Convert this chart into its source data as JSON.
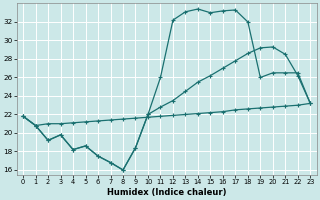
{
  "xlabel": "Humidex (Indice chaleur)",
  "bg_color": "#cce8e8",
  "grid_color": "#ffffff",
  "line_color": "#1a7070",
  "xlim": [
    -0.5,
    23.5
  ],
  "ylim": [
    15.5,
    34
  ],
  "yticks": [
    16,
    18,
    20,
    22,
    24,
    26,
    28,
    30,
    32
  ],
  "xticks": [
    0,
    1,
    2,
    3,
    4,
    5,
    6,
    7,
    8,
    9,
    10,
    11,
    12,
    13,
    14,
    15,
    16,
    17,
    18,
    19,
    20,
    21,
    22,
    23
  ],
  "line1_x": [
    0,
    1,
    2,
    3,
    4,
    5,
    6,
    7,
    8,
    9,
    10,
    11,
    12,
    13,
    14,
    15,
    16,
    17,
    18,
    19,
    20,
    21,
    22,
    23
  ],
  "line1_y": [
    21.8,
    20.8,
    19.2,
    19.8,
    18.2,
    18.6,
    17.5,
    16.8,
    16.0,
    18.4,
    22.0,
    26.0,
    32.2,
    33.1,
    33.4,
    33.0,
    33.2,
    33.3,
    32.0,
    26.0,
    26.5,
    26.5,
    26.5,
    23.2
  ],
  "line2_x": [
    0,
    1,
    2,
    3,
    4,
    5,
    6,
    7,
    8,
    9,
    10,
    11,
    12,
    13,
    14,
    15,
    16,
    17,
    18,
    19,
    20,
    21,
    22,
    23
  ],
  "line2_y": [
    21.8,
    20.8,
    19.2,
    19.8,
    18.2,
    18.6,
    17.5,
    16.8,
    16.0,
    18.4,
    22.0,
    22.8,
    23.5,
    24.5,
    25.5,
    26.2,
    27.0,
    27.8,
    28.6,
    29.2,
    29.3,
    28.5,
    26.2,
    23.2
  ],
  "line3_x": [
    0,
    1,
    2,
    3,
    4,
    5,
    6,
    7,
    8,
    9,
    10,
    11,
    12,
    13,
    14,
    15,
    16,
    17,
    18,
    19,
    20,
    21,
    22,
    23
  ],
  "line3_y": [
    21.8,
    20.8,
    21.0,
    21.0,
    21.1,
    21.2,
    21.3,
    21.4,
    21.5,
    21.6,
    21.7,
    21.8,
    21.9,
    22.0,
    22.1,
    22.2,
    22.3,
    22.5,
    22.6,
    22.7,
    22.8,
    22.9,
    23.0,
    23.2
  ]
}
